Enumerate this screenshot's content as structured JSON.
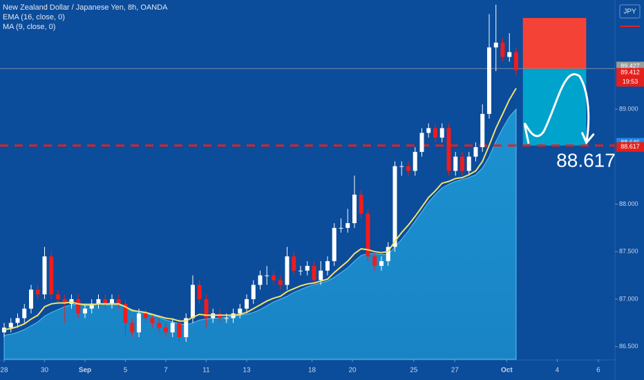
{
  "chart_data": {
    "type": "candlestick",
    "title": "New Zealand Dollar / Japanese Yen, 8h, OANDA",
    "indicators": [
      "EMA (16, close, 0)",
      "MA (9, close, 0)"
    ],
    "currency": "JPY",
    "up_color": "#ffffff",
    "down_color": "#f01c1c",
    "ema_color": "#f3e46c",
    "ma_color": "#1d96d4",
    "x": [
      0,
      1,
      2,
      3,
      4,
      5,
      6,
      7,
      8,
      9,
      10,
      11,
      12,
      13,
      14,
      15,
      16,
      17,
      18,
      19,
      20,
      21,
      22,
      23,
      24,
      25,
      26,
      27,
      28,
      29,
      30,
      31,
      32,
      33,
      34,
      35,
      36,
      37,
      38,
      39,
      40,
      41,
      42,
      43,
      44,
      45,
      46,
      47,
      48,
      49,
      50,
      51,
      52,
      53,
      54,
      55,
      56,
      57,
      58,
      59,
      60,
      61,
      62,
      63,
      64,
      65,
      66,
      67,
      68,
      69,
      70,
      71,
      72,
      73,
      74,
      75,
      76
    ],
    "open": [
      86.65,
      86.7,
      86.75,
      86.8,
      86.9,
      87.1,
      87.05,
      87.45,
      87.05,
      87.0,
      86.95,
      87.0,
      86.85,
      86.9,
      86.95,
      87.0,
      86.95,
      87.0,
      86.95,
      86.75,
      86.65,
      86.85,
      86.8,
      86.75,
      86.7,
      86.65,
      86.75,
      86.6,
      86.8,
      87.15,
      87.0,
      86.8,
      86.85,
      86.8,
      86.8,
      86.85,
      86.9,
      87.0,
      87.15,
      87.25,
      87.25,
      87.2,
      87.15,
      87.45,
      87.3,
      87.3,
      87.35,
      87.2,
      87.3,
      87.4,
      87.75,
      87.75,
      87.8,
      88.1,
      87.9,
      87.45,
      87.35,
      87.4,
      87.55,
      88.4,
      88.4,
      88.35,
      88.55,
      88.75,
      88.8,
      88.7,
      88.8,
      88.35,
      88.5,
      88.35,
      88.5,
      88.6,
      88.95,
      89.65,
      89.7,
      89.55,
      89.6
    ],
    "high": [
      86.75,
      86.8,
      86.85,
      86.95,
      87.15,
      87.15,
      87.55,
      87.5,
      87.1,
      87.05,
      87.05,
      87.05,
      86.95,
      87.0,
      87.05,
      87.05,
      87.05,
      87.05,
      87.0,
      86.8,
      86.9,
      86.9,
      86.85,
      86.8,
      86.75,
      86.8,
      86.8,
      86.85,
      87.25,
      87.2,
      87.05,
      86.9,
      86.9,
      86.85,
      86.9,
      86.95,
      87.05,
      87.2,
      87.3,
      87.35,
      87.3,
      87.25,
      87.55,
      87.5,
      87.35,
      87.4,
      87.4,
      87.4,
      87.45,
      87.8,
      87.85,
      87.95,
      88.3,
      88.15,
      87.95,
      87.5,
      87.45,
      87.6,
      88.45,
      88.45,
      88.45,
      88.6,
      88.8,
      88.85,
      88.85,
      88.85,
      88.85,
      88.55,
      88.55,
      88.55,
      88.65,
      89.05,
      90.0,
      90.1,
      89.75,
      89.8,
      89.65
    ],
    "low": [
      86.6,
      86.65,
      86.7,
      86.75,
      86.85,
      87.0,
      87.0,
      87.0,
      86.95,
      86.75,
      86.9,
      86.8,
      86.8,
      86.85,
      86.9,
      86.9,
      86.9,
      86.9,
      86.6,
      86.6,
      86.6,
      86.75,
      86.7,
      86.65,
      86.6,
      86.6,
      86.55,
      86.55,
      86.75,
      86.95,
      86.7,
      86.75,
      86.75,
      86.75,
      86.75,
      86.8,
      86.85,
      86.95,
      87.1,
      87.15,
      87.15,
      87.1,
      87.1,
      87.25,
      87.25,
      87.25,
      87.15,
      87.15,
      87.25,
      87.35,
      87.7,
      87.7,
      87.75,
      87.85,
      87.4,
      87.3,
      87.3,
      87.35,
      87.5,
      88.3,
      88.3,
      88.3,
      88.5,
      88.7,
      88.65,
      88.65,
      88.3,
      88.3,
      88.3,
      88.3,
      88.45,
      88.55,
      88.9,
      89.4,
      89.5,
      89.5,
      89.35
    ],
    "close": [
      86.7,
      86.75,
      86.8,
      86.9,
      87.1,
      87.05,
      87.45,
      87.05,
      87.0,
      86.95,
      87.0,
      86.85,
      86.9,
      86.95,
      87.0,
      86.95,
      87.0,
      86.95,
      86.75,
      86.65,
      86.85,
      86.8,
      86.75,
      86.7,
      86.65,
      86.75,
      86.6,
      86.8,
      87.15,
      87.0,
      86.8,
      86.85,
      86.8,
      86.8,
      86.85,
      86.9,
      87.0,
      87.15,
      87.25,
      87.25,
      87.2,
      87.15,
      87.45,
      87.3,
      87.3,
      87.35,
      87.2,
      87.3,
      87.4,
      87.75,
      87.75,
      87.8,
      88.1,
      87.9,
      87.45,
      87.35,
      87.4,
      87.55,
      88.4,
      88.4,
      88.35,
      88.55,
      88.75,
      88.8,
      88.7,
      88.8,
      88.35,
      88.5,
      88.35,
      88.5,
      88.6,
      88.95,
      89.65,
      89.7,
      89.55,
      89.6,
      89.41
    ],
    "ema": [
      86.68,
      86.69,
      86.71,
      86.74,
      86.79,
      86.83,
      86.92,
      86.95,
      86.96,
      86.96,
      86.97,
      86.95,
      86.94,
      86.94,
      86.95,
      86.95,
      86.95,
      86.95,
      86.92,
      86.88,
      86.87,
      86.86,
      86.84,
      86.82,
      86.8,
      86.79,
      86.77,
      86.77,
      86.81,
      86.84,
      86.83,
      86.83,
      86.83,
      86.83,
      86.83,
      86.84,
      86.86,
      86.9,
      86.94,
      86.98,
      87.01,
      87.03,
      87.08,
      87.11,
      87.14,
      87.16,
      87.17,
      87.19,
      87.21,
      87.28,
      87.34,
      87.4,
      87.48,
      87.53,
      87.52,
      87.5,
      87.49,
      87.5,
      87.61,
      87.7,
      87.78,
      87.87,
      87.97,
      88.07,
      88.14,
      88.22,
      88.24,
      88.27,
      88.28,
      88.31,
      88.35,
      88.45,
      88.62,
      88.8,
      88.95,
      89.1,
      89.22
    ],
    "ma": [
      86.62,
      86.63,
      86.65,
      86.68,
      86.72,
      86.76,
      86.82,
      86.86,
      86.89,
      86.92,
      86.94,
      86.95,
      86.95,
      86.95,
      86.95,
      86.94,
      86.94,
      86.94,
      86.92,
      86.89,
      86.87,
      86.85,
      86.83,
      86.81,
      86.78,
      86.76,
      86.74,
      86.73,
      86.75,
      86.78,
      86.79,
      86.8,
      86.8,
      86.81,
      86.82,
      86.83,
      86.84,
      86.86,
      86.89,
      86.93,
      86.97,
      87.0,
      87.03,
      87.07,
      87.1,
      87.13,
      87.15,
      87.17,
      87.19,
      87.23,
      87.28,
      87.33,
      87.4,
      87.46,
      87.48,
      87.48,
      87.47,
      87.47,
      87.55,
      87.63,
      87.72,
      87.82,
      87.92,
      88.02,
      88.1,
      88.17,
      88.21,
      88.24,
      88.26,
      88.28,
      88.31,
      88.38,
      88.5,
      88.66,
      88.8,
      88.92,
      89.0
    ],
    "xlim": [
      -0.615,
      90.67
    ],
    "ylim": [
      86.367,
      90.149
    ],
    "xticks": [
      {
        "value": 0,
        "label": "28"
      },
      {
        "value": 6,
        "label": "30"
      },
      {
        "value": 12,
        "label": "Sep"
      },
      {
        "value": 18,
        "label": "5"
      },
      {
        "value": 24,
        "label": "7"
      },
      {
        "value": 30,
        "label": "11"
      },
      {
        "value": 36,
        "label": "13"
      },
      {
        "value": 45.7,
        "label": "18"
      },
      {
        "value": 51.7,
        "label": "20"
      },
      {
        "value": 60.8,
        "label": "25"
      },
      {
        "value": 66.9,
        "label": "27"
      },
      {
        "value": 74.6,
        "label": "Oct"
      },
      {
        "value": 82.1,
        "label": "4"
      },
      {
        "value": 88.2,
        "label": "6"
      }
    ],
    "yticks": [
      {
        "value": 86.5,
        "label": "86.500"
      },
      {
        "value": 87,
        "label": "87.000"
      },
      {
        "value": 87.5,
        "label": "87.500"
      },
      {
        "value": 88,
        "label": "88.000"
      },
      {
        "value": 89,
        "label": "89.000"
      }
    ],
    "price_labels": [
      {
        "value": 89.427,
        "color": "#9a9a9a"
      },
      {
        "value": 89.412,
        "color": "#e5201c"
      },
      {
        "value": 88.646,
        "color": "#1e88e5"
      },
      {
        "value": 88.617,
        "color": "#e5201c"
      }
    ],
    "countdown": "19:53",
    "position": {
      "stop": 89.96,
      "entry": 89.42,
      "target": 88.617
    }
  }
}
